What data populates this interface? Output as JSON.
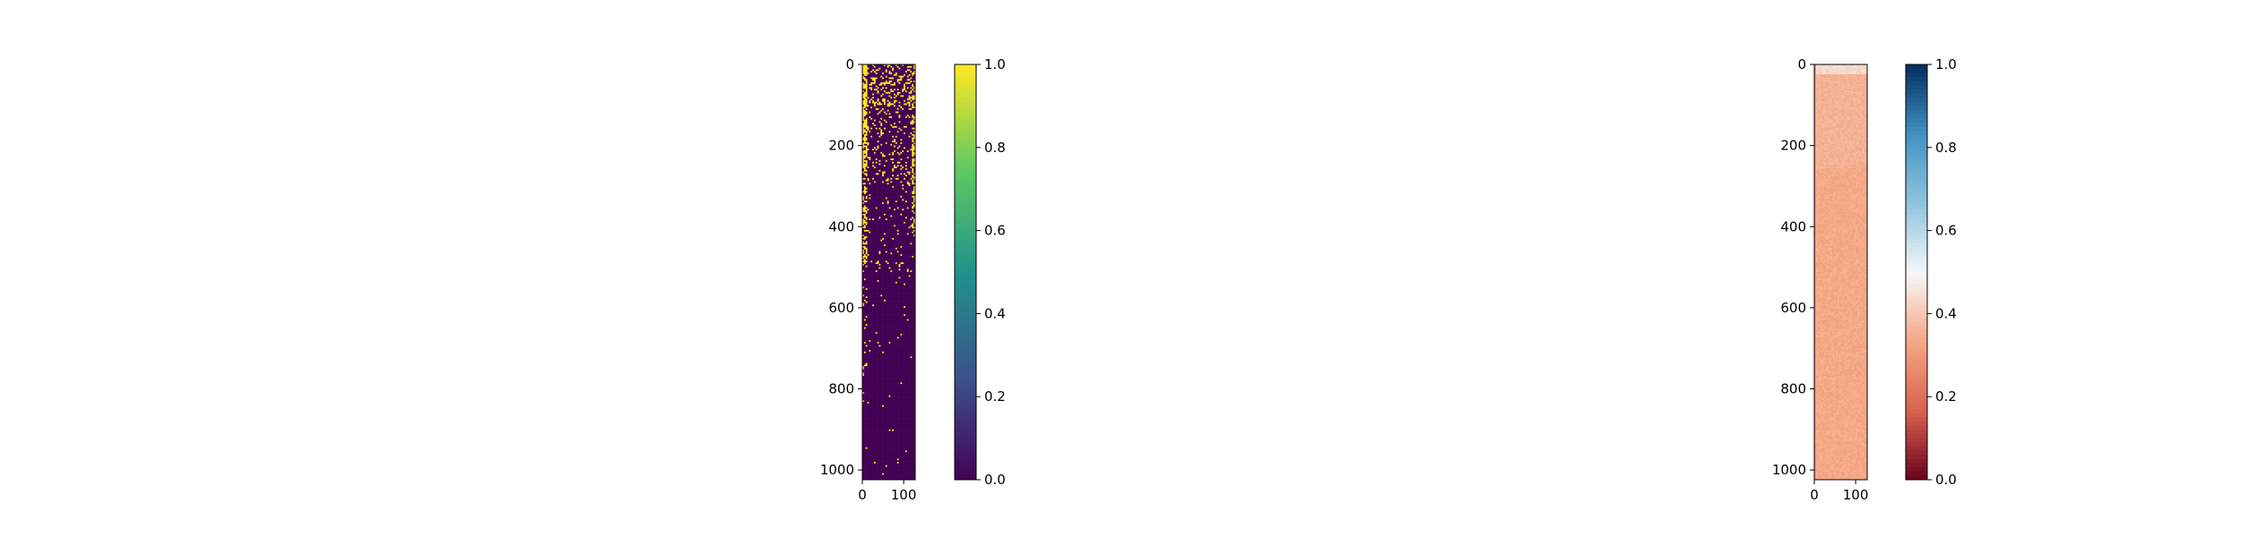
{
  "chart_data": [
    {
      "type": "heatmap",
      "title": "",
      "xlabel": "",
      "ylabel": "",
      "colormap": "viridis",
      "colormap_stops": [
        "#440154",
        "#3b528b",
        "#21918c",
        "#5ec962",
        "#fde725"
      ],
      "rows": 1024,
      "cols": 128,
      "xlim": [
        0,
        128
      ],
      "ylim": [
        1024,
        0
      ],
      "x_ticks": [
        0,
        100
      ],
      "x_tick_labels": [
        "0",
        "100"
      ],
      "y_ticks": [
        0,
        200,
        400,
        600,
        800,
        1000
      ],
      "y_tick_labels": [
        "0",
        "200",
        "400",
        "600",
        "800",
        "1000"
      ],
      "colorbar": {
        "range": [
          0,
          1
        ],
        "ticks": [
          0.0,
          0.2,
          0.4,
          0.6,
          0.8,
          1.0
        ],
        "tick_labels": [
          "0.0",
          "0.2",
          "0.4",
          "0.6",
          "0.8",
          "1.0"
        ]
      },
      "description_of_values": "binary values; value 1 (yellow) dense in first ~10 columns and scattered in rows 0-500, plus a band of 1s in the last columns for rows 0-450; rest 0"
    },
    {
      "type": "heatmap",
      "title": "",
      "xlabel": "",
      "ylabel": "",
      "colormap": "RdBu",
      "colormap_stops": [
        "#67001f",
        "#d6604d",
        "#f4a582",
        "#f7f7f7",
        "#92c5de",
        "#4393c3",
        "#053061"
      ],
      "rows": 1024,
      "cols": 128,
      "xlim": [
        0,
        128
      ],
      "ylim": [
        1024,
        0
      ],
      "x_ticks": [
        0,
        100
      ],
      "x_tick_labels": [
        "0",
        "100"
      ],
      "y_ticks": [
        0,
        200,
        400,
        600,
        800,
        1000
      ],
      "y_tick_labels": [
        "0",
        "200",
        "400",
        "600",
        "800",
        "1000"
      ],
      "colorbar": {
        "range": [
          0,
          1
        ],
        "ticks": [
          0.0,
          0.2,
          0.4,
          0.6,
          0.8,
          1.0
        ],
        "tick_labels": [
          "0.0",
          "0.2",
          "0.4",
          "0.6",
          "0.8",
          "1.0"
        ]
      },
      "description_of_values": "values mostly around 0.3-0.38 (salmon); slightly lighter near top rows; first ~20 rows lighter (~0.4)"
    }
  ]
}
